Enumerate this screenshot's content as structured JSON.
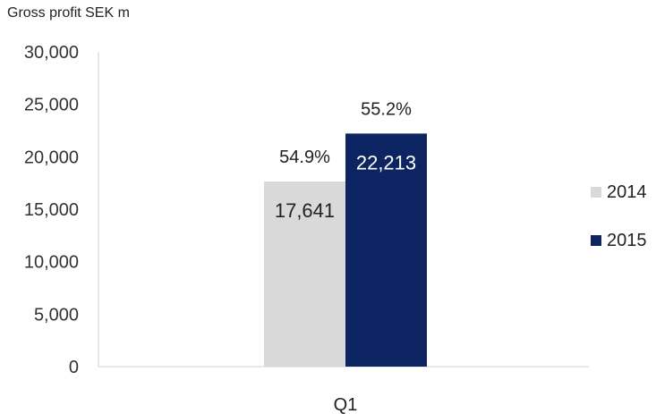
{
  "chart_data": {
    "type": "bar",
    "title": "Gross profit SEK m",
    "categories": [
      "Q1"
    ],
    "series": [
      {
        "name": "2014",
        "values": [
          17641
        ],
        "value_labels": [
          "17,641"
        ],
        "margin_labels": [
          "54.9%"
        ],
        "color": "#d9d9d9",
        "label_color": "#222222"
      },
      {
        "name": "2015",
        "values": [
          22213
        ],
        "value_labels": [
          "22,213"
        ],
        "margin_labels": [
          "55.2%"
        ],
        "color": "#0c2461",
        "label_color": "#ffffff"
      }
    ],
    "ylim": [
      0,
      30000
    ],
    "yticks": [
      0,
      5000,
      10000,
      15000,
      20000,
      25000,
      30000
    ],
    "ytick_labels": [
      "0",
      "5,000",
      "10,000",
      "15,000",
      "20,000",
      "25,000",
      "30,000"
    ],
    "xlabel": "",
    "ylabel": "",
    "grid": false,
    "legend_position": "right"
  }
}
